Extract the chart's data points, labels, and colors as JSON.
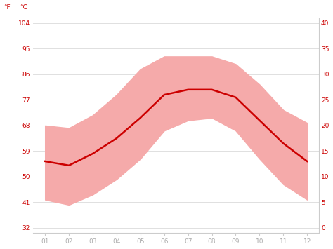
{
  "months": [
    1,
    2,
    3,
    4,
    5,
    6,
    7,
    8,
    9,
    10,
    11,
    12
  ],
  "month_labels": [
    "01",
    "02",
    "03",
    "04",
    "05",
    "06",
    "07",
    "08",
    "09",
    "10",
    "11",
    "12"
  ],
  "avg_temp_c": [
    13.0,
    12.2,
    14.5,
    17.5,
    21.5,
    26.0,
    27.0,
    27.0,
    25.5,
    21.0,
    16.5,
    13.0
  ],
  "max_temp_c": [
    20.0,
    19.5,
    22.0,
    26.0,
    31.0,
    33.5,
    33.5,
    33.5,
    32.0,
    28.0,
    23.0,
    20.5
  ],
  "min_temp_c": [
    5.5,
    4.5,
    6.5,
    9.5,
    13.5,
    19.0,
    21.0,
    21.5,
    19.0,
    13.5,
    8.5,
    5.5
  ],
  "line_color": "#cc0000",
  "band_color": "#f5aaaa",
  "background_color": "#ffffff",
  "grid_color": "#e0e0e0",
  "axis_label_color": "#cc0000",
  "tick_color_x": "#aaaaaa",
  "ylim_c": [
    -1,
    41
  ],
  "yticks_c": [
    0,
    5,
    10,
    15,
    20,
    25,
    30,
    35,
    40
  ],
  "yticks_f": [
    32,
    41,
    50,
    59,
    68,
    77,
    86,
    95,
    104
  ],
  "ylabel_left": "°F",
  "ylabel_right": "°C"
}
